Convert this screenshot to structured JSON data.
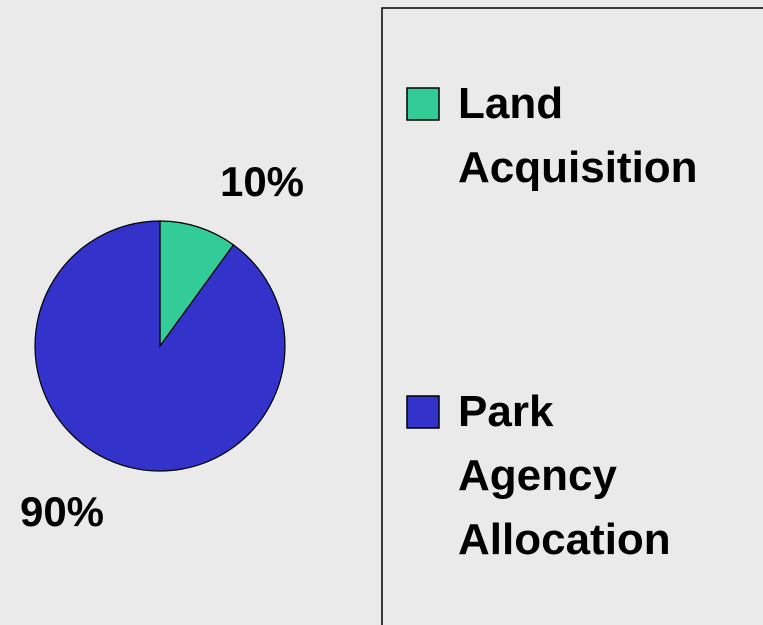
{
  "chart_data": {
    "type": "pie",
    "categories": [
      "Land Acquisition",
      "Park Agency Allocation"
    ],
    "values": [
      10,
      90
    ],
    "value_labels": [
      "10%",
      "90%"
    ],
    "colors": [
      "#33cc99",
      "#3333cc"
    ],
    "legend": "right"
  }
}
